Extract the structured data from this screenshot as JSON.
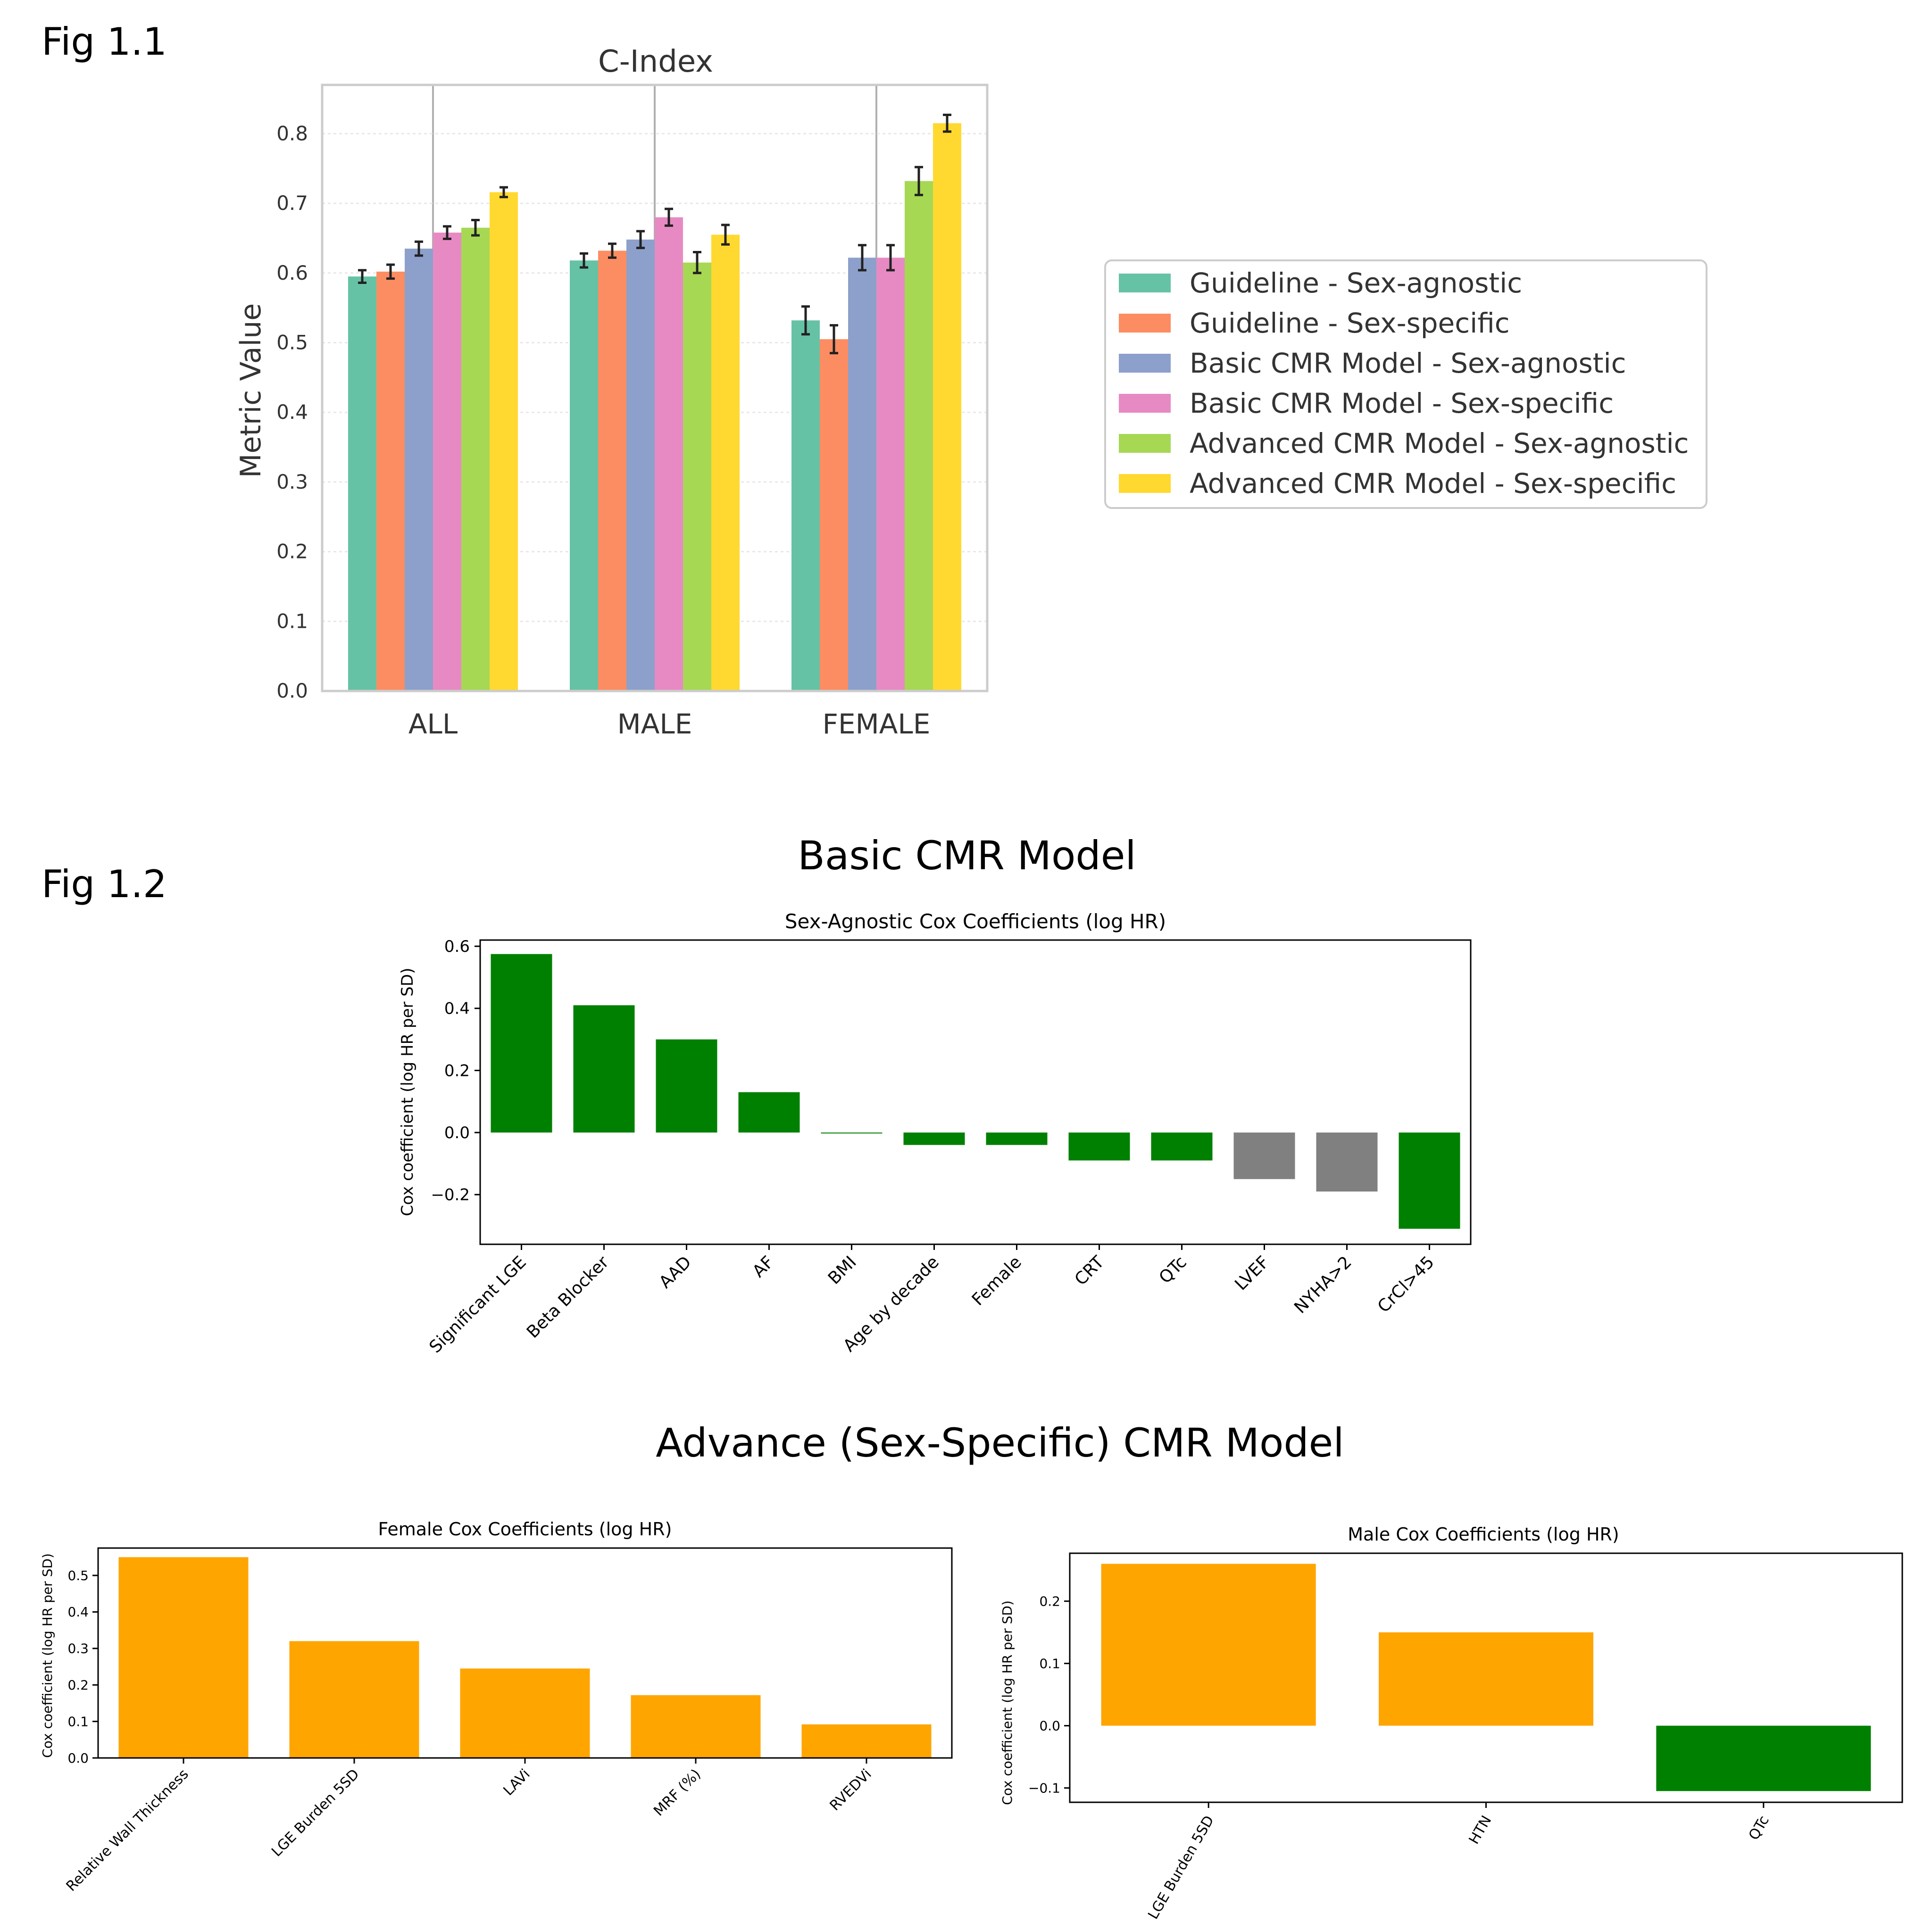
{
  "figure_labels": {
    "fig1": "Fig 1.1",
    "fig2": "Fig 1.2"
  },
  "section_titles": {
    "basic": "Basic CMR Model",
    "advance": "Advance (Sex-Specific) CMR Model"
  },
  "colors": {
    "guideline_agnostic": "#66c2a5",
    "guideline_specific": "#fc8d62",
    "basic_agnostic": "#8da0cb",
    "basic_specific": "#e78ac3",
    "advanced_agnostic": "#a6d854",
    "advanced_specific": "#ffd92f",
    "green": "#008000",
    "gray": "#808080",
    "orange": "#ffa500"
  },
  "chart_data": [
    {
      "type": "bar",
      "title": "C-Index",
      "xlabel": "",
      "ylabel": "Metric Value",
      "ylim": [
        0,
        0.87
      ],
      "yticks": [
        "0.0",
        "0.1",
        "0.2",
        "0.3",
        "0.4",
        "0.5",
        "0.6",
        "0.7",
        "0.8"
      ],
      "grid": true,
      "legend_position": "right",
      "categories": [
        "ALL",
        "MALE",
        "FEMALE"
      ],
      "series": [
        {
          "name": "Guideline - Sex-agnostic",
          "color": "#66c2a5",
          "values": [
            0.595,
            0.618,
            0.532
          ],
          "errors": [
            0.009,
            0.01,
            0.02
          ]
        },
        {
          "name": "Guideline - Sex-specific",
          "color": "#fc8d62",
          "values": [
            0.602,
            0.632,
            0.505
          ],
          "errors": [
            0.01,
            0.01,
            0.02
          ]
        },
        {
          "name": "Basic CMR Model - Sex-agnostic",
          "color": "#8da0cb",
          "values": [
            0.635,
            0.648,
            0.622
          ],
          "errors": [
            0.01,
            0.012,
            0.018
          ]
        },
        {
          "name": "Basic CMR Model - Sex-specific",
          "color": "#e78ac3",
          "values": [
            0.658,
            0.68,
            0.622
          ],
          "errors": [
            0.009,
            0.012,
            0.018
          ]
        },
        {
          "name": "Advanced CMR Model - Sex-agnostic",
          "color": "#a6d854",
          "values": [
            0.665,
            0.615,
            0.732
          ],
          "errors": [
            0.011,
            0.015,
            0.02
          ]
        },
        {
          "name": "Advanced CMR Model - Sex-specific",
          "color": "#ffd92f",
          "values": [
            0.716,
            0.655,
            0.815
          ],
          "errors": [
            0.007,
            0.014,
            0.012
          ]
        }
      ]
    },
    {
      "type": "bar",
      "title": "Sex-Agnostic Cox Coefficients (log HR)",
      "xlabel": "",
      "ylabel": "Cox coefficient (log HR per SD)",
      "ylim": [
        -0.36,
        0.62
      ],
      "yticks": [
        "0.6",
        "0.4",
        "0.2",
        "0.0",
        "−0.2"
      ],
      "categories": [
        "Significant LGE",
        "Beta Blocker",
        "AAD",
        "AF",
        "BMI",
        "Age by decade",
        "Female",
        "CRT",
        "QTc",
        "LVEF",
        "NYHA>2",
        "CrCl>45"
      ],
      "values": [
        0.575,
        0.41,
        0.3,
        0.13,
        -0.003,
        -0.04,
        -0.04,
        -0.09,
        -0.09,
        -0.15,
        -0.19,
        -0.31
      ],
      "bar_colors": [
        "#008000",
        "#008000",
        "#008000",
        "#008000",
        "#008000",
        "#008000",
        "#008000",
        "#008000",
        "#008000",
        "#808080",
        "#808080",
        "#008000"
      ]
    },
    {
      "type": "bar",
      "title": "Female Cox Coefficients (log HR)",
      "xlabel": "",
      "ylabel": "Cox coefficient (log HR per SD)",
      "ylim": [
        0,
        0.575
      ],
      "yticks": [
        "0.0",
        "0.1",
        "0.2",
        "0.3",
        "0.4",
        "0.5"
      ],
      "categories": [
        "Relative Wall Thickness",
        "LGE Burden 5SD",
        "LAVi",
        "MRF (%)",
        "RVEDVi"
      ],
      "values": [
        0.55,
        0.32,
        0.245,
        0.172,
        0.092
      ],
      "bar_colors": [
        "#ffa500",
        "#ffa500",
        "#ffa500",
        "#ffa500",
        "#ffa500"
      ]
    },
    {
      "type": "bar",
      "title": "Male Cox Coefficients (log HR)",
      "xlabel": "",
      "ylabel": "Cox coefficient (log HR per SD)",
      "ylim": [
        -0.123,
        0.277
      ],
      "yticks": [
        "0.2",
        "0.1",
        "0.0",
        "−0.1"
      ],
      "categories": [
        "LGE Burden 5SD",
        "HTN",
        "QTc"
      ],
      "values": [
        0.26,
        0.15,
        -0.105
      ],
      "bar_colors": [
        "#ffa500",
        "#ffa500",
        "#008000"
      ]
    }
  ]
}
